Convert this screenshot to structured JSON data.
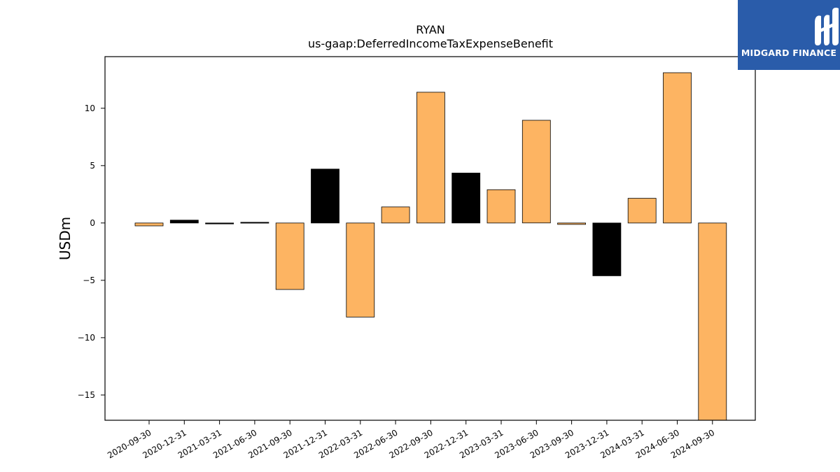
{
  "chart_data": {
    "type": "bar",
    "title": "RYAN",
    "subtitle": "us-gaap:DeferredIncomeTaxExpenseBenefit",
    "xlabel": "",
    "ylabel": "USDm",
    "ylim": [
      -17.2,
      14.5
    ],
    "yticks": [
      -15,
      -10,
      -5,
      0,
      5,
      10
    ],
    "ytick_labels": [
      "−15",
      "−10",
      "−5",
      "0",
      "5",
      "10"
    ],
    "grid": false,
    "categories": [
      "2020-09-30",
      "2020-12-31",
      "2021-03-31",
      "2021-06-30",
      "2021-09-30",
      "2021-12-31",
      "2022-03-31",
      "2022-06-30",
      "2022-09-30",
      "2022-12-31",
      "2023-03-31",
      "2023-06-30",
      "2023-09-30",
      "2023-12-31",
      "2024-03-31",
      "2024-06-30",
      "2024-09-30"
    ],
    "values": [
      -0.25,
      0.25,
      -0.08,
      0.06,
      -5.8,
      4.7,
      -8.2,
      1.4,
      11.4,
      4.35,
      2.9,
      8.95,
      -0.12,
      -4.6,
      2.15,
      13.1,
      -17.2
    ],
    "bar_colors": [
      "#fdb462",
      "#000000",
      "#000000",
      "#000000",
      "#fdb462",
      "#000000",
      "#fdb462",
      "#fdb462",
      "#fdb462",
      "#000000",
      "#fdb462",
      "#fdb462",
      "#fdb462",
      "#000000",
      "#fdb462",
      "#fdb462",
      "#fdb462"
    ]
  },
  "logo": {
    "text": "MIDGARD FINANCE",
    "background": "#2a5caa"
  }
}
